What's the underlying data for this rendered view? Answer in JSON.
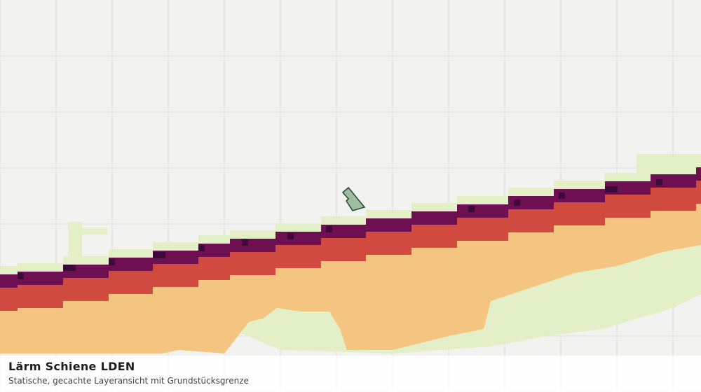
{
  "caption": {
    "title": "Lärm Schiene LDEN",
    "subtitle": "Statische, gecachte Layeransicht mit Grundstücksgrenze"
  }
}
